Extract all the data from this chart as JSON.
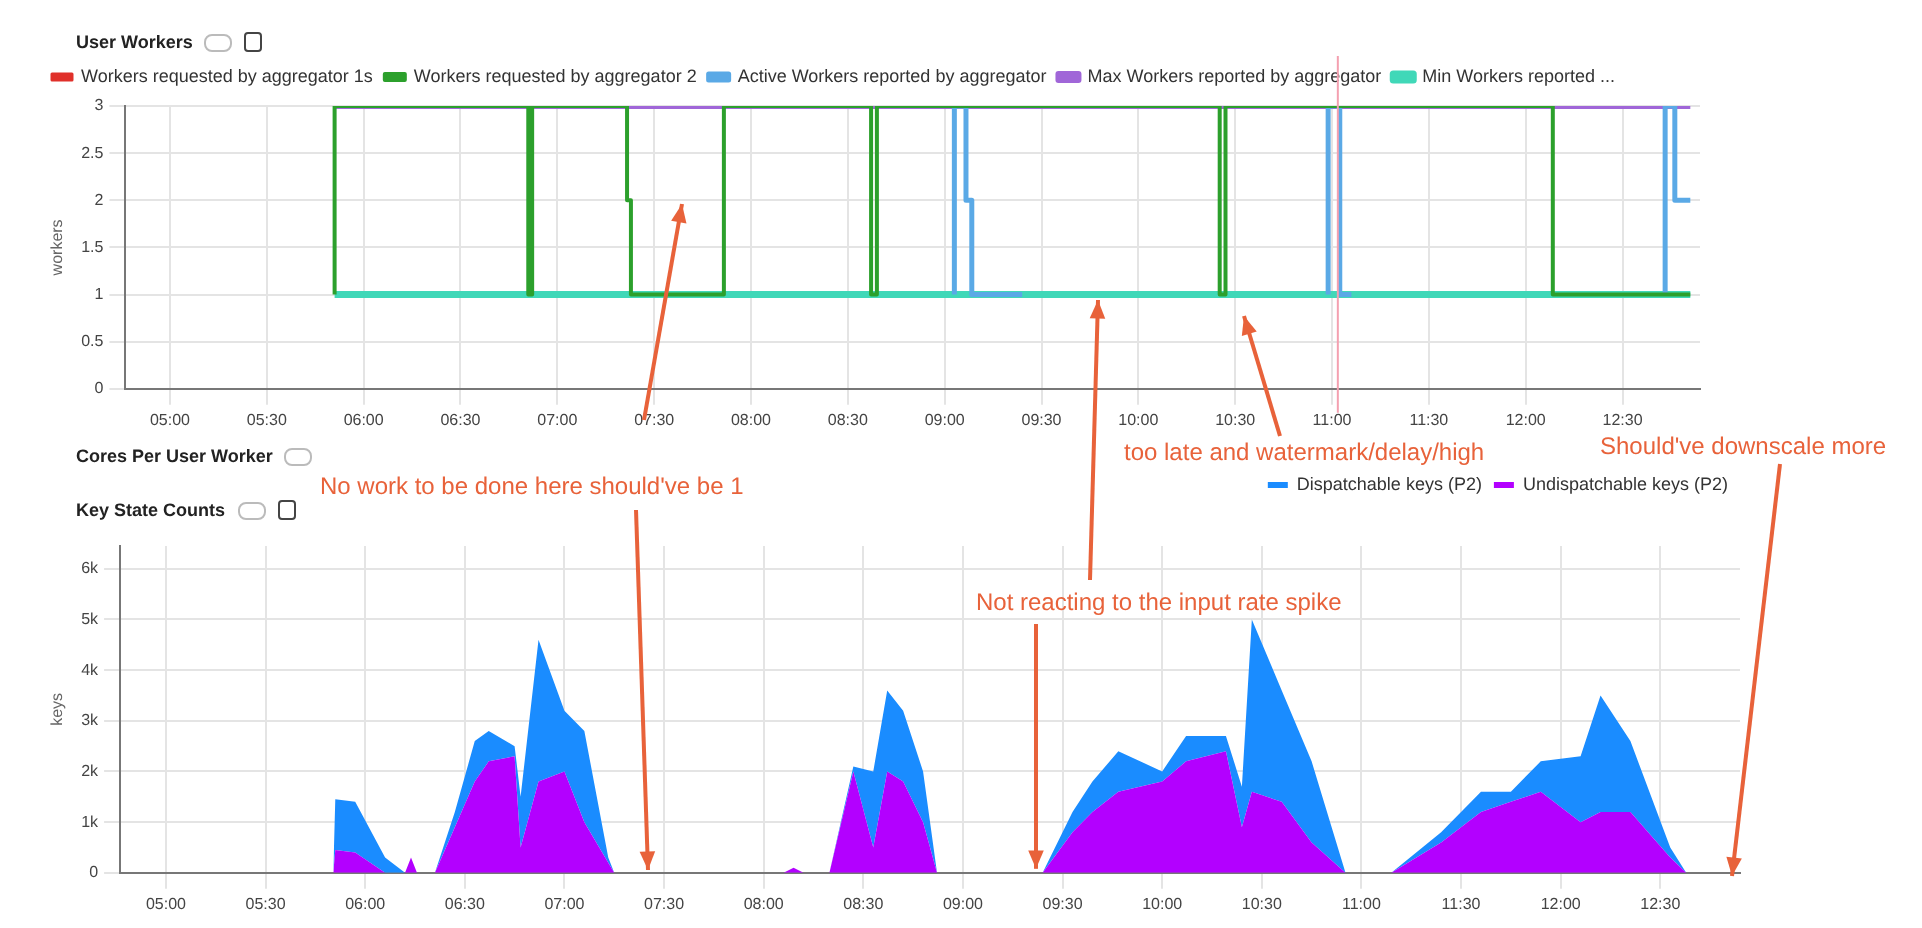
{
  "chart_data": [
    {
      "type": "step",
      "title": "User Workers",
      "ylabel": "workers",
      "xlim": [
        4.77,
        12.9
      ],
      "ylim": [
        0,
        3
      ],
      "yticks": [
        0,
        0.5,
        1,
        1.5,
        2,
        2.5,
        3
      ],
      "xticks": [
        {
          "value": 5,
          "label": "05:00"
        },
        {
          "value": 5.5,
          "label": "05:30"
        },
        {
          "value": 6,
          "label": "06:00"
        },
        {
          "value": 6.5,
          "label": "06:30"
        },
        {
          "value": 7,
          "label": "07:00"
        },
        {
          "value": 7.5,
          "label": "07:30"
        },
        {
          "value": 8,
          "label": "08:00"
        },
        {
          "value": 8.5,
          "label": "08:30"
        },
        {
          "value": 9,
          "label": "09:00"
        },
        {
          "value": 9.5,
          "label": "09:30"
        },
        {
          "value": 10,
          "label": "10:00"
        },
        {
          "value": 10.5,
          "label": "10:30"
        },
        {
          "value": 11,
          "label": "11:00"
        },
        {
          "value": 11.5,
          "label": "11:30"
        },
        {
          "value": 12,
          "label": "12:00"
        },
        {
          "value": 12.5,
          "label": "12:30"
        }
      ],
      "grid": true,
      "legend": "top",
      "marker": "none",
      "line_style": "solid",
      "ref_lines": [
        {
          "axis": "x",
          "value": 11.03,
          "color": "#f4a0b0"
        }
      ],
      "annotations": [
        "No work to be done here should've be 1",
        "too late and watermark/delay/high"
      ],
      "series": [
        {
          "name": "Workers requested by aggregator 1s",
          "color": "#e0302a"
        },
        {
          "name": "Workers requested by aggregator 2",
          "color": "#2ca02c",
          "x": [
            5.85,
            6.85,
            6.87,
            7.36,
            7.38,
            7.86,
            8.62,
            8.65,
            10.42,
            10.45,
            12.14,
            12.16,
            12.85
          ],
          "values": [
            1,
            3,
            1,
            3,
            2,
            1,
            3,
            1,
            3,
            1,
            3,
            1,
            1
          ]
        },
        {
          "name": "Active Workers reported by aggregator",
          "color": "#5aa9e6",
          "x": [
            9.05,
            9.11,
            9.14,
            9.35,
            9.4,
            10.0,
            10.98,
            11.04,
            11.06,
            11.1,
            12.0,
            12.72,
            12.77,
            12.79,
            12.85
          ],
          "values": [
            1,
            3,
            2,
            1,
            1,
            null,
            1,
            3,
            1,
            1,
            null,
            1,
            3,
            2,
            2
          ]
        },
        {
          "name": "Max Workers reported by aggregator",
          "color": "#a066d8",
          "x": [
            5.85,
            12.85
          ],
          "values": [
            3,
            3
          ]
        },
        {
          "name": "Min Workers reported ...",
          "color": "#40d8b8",
          "x": [
            5.85,
            12.85
          ],
          "values": [
            1,
            1
          ]
        }
      ]
    },
    {
      "type": "other",
      "title": "Cores Per User Worker"
    },
    {
      "type": "area",
      "title": "Key State Counts",
      "ylabel": "keys",
      "stacked": true,
      "xlim": [
        4.77,
        12.9
      ],
      "ylim": [
        0,
        6450
      ],
      "yticks": [
        0,
        {
          "value": 1000,
          "label": "1k"
        },
        {
          "value": 2000,
          "label": "2k"
        },
        {
          "value": 3000,
          "label": "3k"
        },
        {
          "value": 4000,
          "label": "4k"
        },
        {
          "value": 5000,
          "label": "5k"
        },
        {
          "value": 6000,
          "label": "6k"
        }
      ],
      "xticks": [
        {
          "value": 5,
          "label": "05:00"
        },
        {
          "value": 5.5,
          "label": "05:30"
        },
        {
          "value": 6,
          "label": "06:00"
        },
        {
          "value": 6.5,
          "label": "06:30"
        },
        {
          "value": 7,
          "label": "07:00"
        },
        {
          "value": 7.5,
          "label": "07:30"
        },
        {
          "value": 8,
          "label": "08:00"
        },
        {
          "value": 8.5,
          "label": "08:30"
        },
        {
          "value": 9,
          "label": "09:00"
        },
        {
          "value": 9.5,
          "label": "09:30"
        },
        {
          "value": 10,
          "label": "10:00"
        },
        {
          "value": 10.5,
          "label": "10:30"
        },
        {
          "value": 11,
          "label": "11:00"
        },
        {
          "value": 11.5,
          "label": "11:30"
        },
        {
          "value": 12,
          "label": "12:00"
        },
        {
          "value": 12.5,
          "label": "12:30"
        }
      ],
      "grid": true,
      "legend": "top right",
      "marker": "none",
      "annotations": [
        {
          "text": "Not reacting to the input rate spike",
          "x": 9.37,
          "y": 0
        },
        "Should've downscale more"
      ],
      "x": [
        5.84,
        5.85,
        5.95,
        6.1,
        6.2,
        6.23,
        6.26,
        6.35,
        6.45,
        6.55,
        6.62,
        6.75,
        6.78,
        6.87,
        7.0,
        7.1,
        7.22,
        7.25,
        8.1,
        8.15,
        8.2,
        8.33,
        8.45,
        8.55,
        8.62,
        8.7,
        8.8,
        8.87,
        9.4,
        9.55,
        9.65,
        9.78,
        10.0,
        10.12,
        10.32,
        10.4,
        10.45,
        10.6,
        10.75,
        10.92,
        11.15,
        11.4,
        11.6,
        11.75,
        11.9,
        12.1,
        12.2,
        12.35,
        12.55,
        12.63
      ],
      "series": [
        {
          "name": "Undispatchable keys (P2)",
          "color": "#b300ff",
          "values": [
            0,
            450,
            400,
            0,
            0,
            300,
            0,
            0,
            900,
            1800,
            2200,
            2300,
            500,
            1800,
            2000,
            1000,
            200,
            0,
            0,
            100,
            0,
            0,
            2000,
            500,
            2000,
            1800,
            1000,
            0,
            0,
            800,
            1200,
            1600,
            1800,
            2200,
            2400,
            900,
            1600,
            1400,
            600,
            0,
            0,
            600,
            1200,
            1400,
            1600,
            1000,
            1200,
            1200,
            300,
            0
          ]
        },
        {
          "name": "Dispatchable keys (P2)",
          "color": "#1a8cff",
          "values": [
            0,
            1000,
            1000,
            300,
            0,
            0,
            0,
            0,
            300,
            800,
            600,
            200,
            1000,
            2800,
            1200,
            1800,
            100,
            0,
            0,
            0,
            0,
            0,
            100,
            1500,
            1600,
            1400,
            1000,
            0,
            0,
            400,
            600,
            800,
            200,
            500,
            300,
            800,
            3400,
            2200,
            1600,
            0,
            0,
            200,
            400,
            200,
            600,
            1300,
            2300,
            1400,
            200,
            0
          ]
        }
      ]
    }
  ]
}
